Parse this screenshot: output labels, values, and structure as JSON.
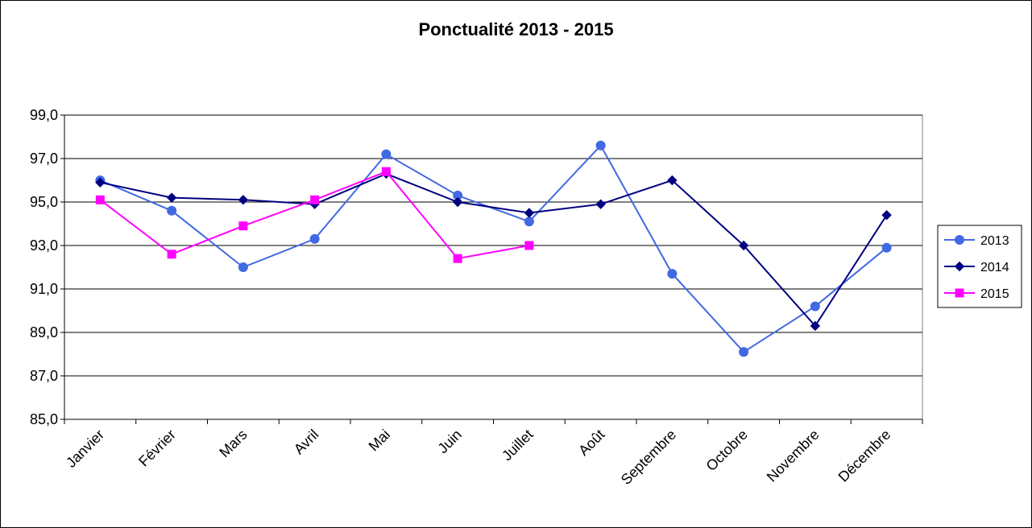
{
  "chart_data": {
    "type": "line",
    "title": "Ponctualité 2013 - 2015",
    "xlabel": "",
    "ylabel": "",
    "categories": [
      "Janvier",
      "Février",
      "Mars",
      "Avril",
      "Mai",
      "Juin",
      "Juillet",
      "Août",
      "Septembre",
      "Octobre",
      "Novembre",
      "Décembre"
    ],
    "ylim": [
      85.0,
      99.0
    ],
    "yticks": [
      "85,0",
      "87,0",
      "89,0",
      "91,0",
      "93,0",
      "95,0",
      "97,0",
      "99,0"
    ],
    "ytick_values": [
      85,
      87,
      89,
      91,
      93,
      95,
      97,
      99
    ],
    "grid": true,
    "legend_position": "right",
    "series": [
      {
        "name": "2013",
        "color": "#4169E1",
        "marker": "circle",
        "values": [
          96.0,
          94.6,
          92.0,
          93.3,
          97.2,
          95.3,
          94.1,
          97.6,
          91.7,
          88.1,
          90.2,
          92.9
        ]
      },
      {
        "name": "2014",
        "color": "#000080",
        "marker": "diamond",
        "values": [
          95.9,
          95.2,
          95.1,
          94.9,
          96.3,
          95.0,
          94.5,
          94.9,
          96.0,
          93.0,
          89.3,
          94.4
        ]
      },
      {
        "name": "2015",
        "color": "#FF00FF",
        "marker": "square",
        "values": [
          95.1,
          92.6,
          93.9,
          95.1,
          96.4,
          92.4,
          93.0,
          null,
          null,
          null,
          null,
          null
        ]
      }
    ]
  }
}
